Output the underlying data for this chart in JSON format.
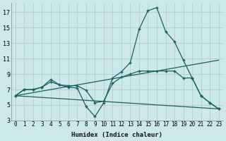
{
  "xlabel": "Humidex (Indice chaleur)",
  "bg_color": "#cce8e8",
  "grid_color": "#b0c8c8",
  "line_color": "#1a6060",
  "xlim": [
    -0.5,
    23.5
  ],
  "ylim": [
    3,
    18.2
  ],
  "yticks": [
    3,
    5,
    7,
    9,
    11,
    13,
    15,
    17
  ],
  "xticks": [
    0,
    1,
    2,
    3,
    4,
    5,
    6,
    7,
    8,
    9,
    10,
    11,
    12,
    13,
    14,
    15,
    16,
    17,
    18,
    19,
    20,
    21,
    22,
    23
  ],
  "line1": {
    "x": [
      0,
      1,
      2,
      3,
      4,
      5,
      6,
      7,
      8,
      9,
      10,
      11,
      12,
      13,
      14,
      15,
      16,
      17,
      18,
      19,
      20,
      21,
      22,
      23
    ],
    "y": [
      6.2,
      7.0,
      7.0,
      7.3,
      8.3,
      7.6,
      7.3,
      7.2,
      4.8,
      3.5,
      5.3,
      8.5,
      9.3,
      10.5,
      14.8,
      17.2,
      17.6,
      14.5,
      13.2,
      10.8,
      8.5,
      6.2,
      5.3,
      4.5
    ]
  },
  "line2": {
    "x": [
      0,
      1,
      2,
      3,
      4,
      5,
      6,
      7,
      8,
      9,
      10,
      11,
      12,
      13,
      14,
      15,
      16,
      17,
      18,
      19,
      20,
      21,
      22,
      23
    ],
    "y": [
      6.2,
      7.0,
      7.0,
      7.3,
      8.0,
      7.6,
      7.5,
      7.5,
      6.9,
      5.3,
      5.5,
      7.8,
      8.6,
      9.0,
      9.4,
      9.4,
      9.4,
      9.4,
      9.4,
      8.5,
      8.5,
      6.2,
      5.3,
      4.5
    ]
  },
  "line3_x": [
    0,
    23
  ],
  "line3_y": [
    6.2,
    4.5
  ],
  "line4_x": [
    0,
    23
  ],
  "line4_y": [
    6.2,
    10.8
  ]
}
